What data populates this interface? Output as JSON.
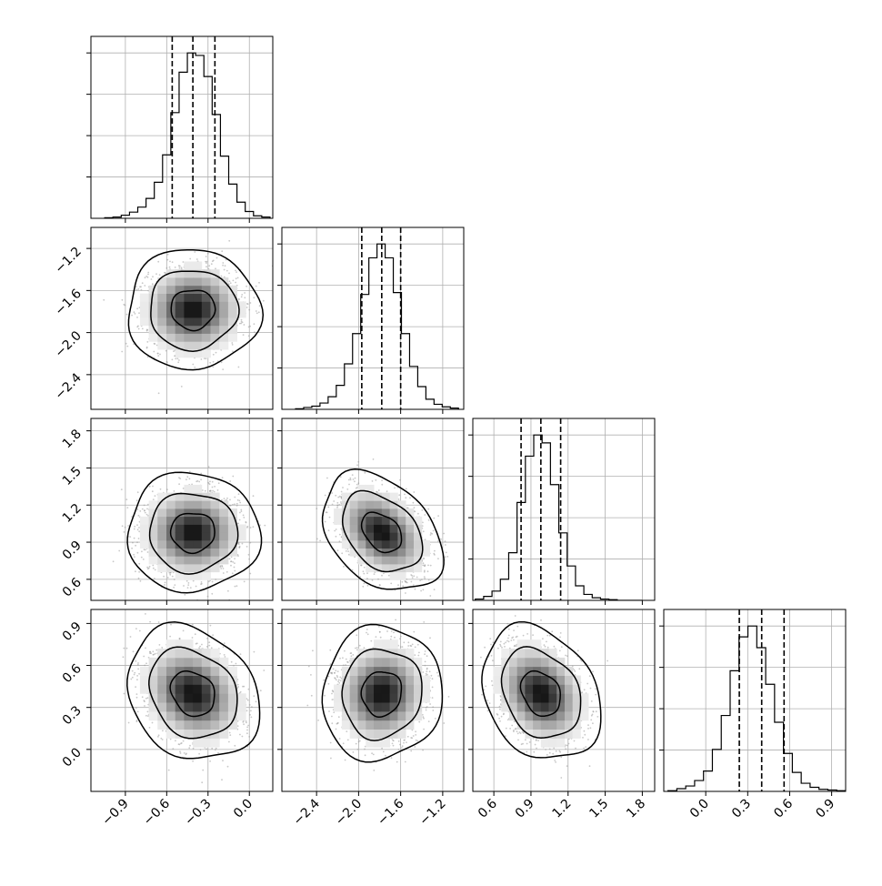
{
  "chart_data": {
    "type": "corner",
    "parameters": 4,
    "grid": true,
    "axis_ranges": [
      [
        -1.15,
        0.17
      ],
      [
        -2.73,
        -1.0
      ],
      [
        0.43,
        1.9
      ],
      [
        -0.3,
        1.0
      ]
    ],
    "x_tick_labels": [
      [
        "-0.9",
        "-0.6",
        "-0.3",
        "0.0"
      ],
      [
        "-2.4",
        "-2.0",
        "-1.6",
        "-1.2"
      ],
      [
        "0.6",
        "0.9",
        "1.2",
        "1.5",
        "1.8"
      ],
      [
        "0.0",
        "0.3",
        "0.6",
        "0.9"
      ]
    ],
    "y_tick_labels": {
      "1": [
        "-2.4",
        "-2.0",
        "-1.6",
        "-1.2"
      ],
      "2": [
        "0.6",
        "0.9",
        "1.2",
        "1.5",
        "1.8"
      ],
      "3": [
        "0.0",
        "0.3",
        "0.6",
        "0.9"
      ]
    },
    "x_tick_values": [
      [
        -0.9,
        -0.6,
        -0.3,
        0.0
      ],
      [
        -2.4,
        -2.0,
        -1.6,
        -1.2
      ],
      [
        0.6,
        0.9,
        1.2,
        1.5,
        1.8
      ],
      [
        0.0,
        0.3,
        0.6,
        0.9
      ]
    ],
    "quantiles": [
      [
        -0.56,
        -0.41,
        -0.25
      ],
      [
        -1.97,
        -1.78,
        -1.6
      ],
      [
        0.82,
        0.98,
        1.14
      ],
      [
        0.24,
        0.4,
        0.56
      ]
    ],
    "histograms": [
      {
        "range": [
          -1.05,
          0.15
        ],
        "counts": [
          1,
          2,
          5,
          10,
          18,
          32,
          58,
          102,
          170,
          235,
          266,
          262,
          228,
          167,
          100,
          55,
          26,
          11,
          4,
          2
        ]
      },
      {
        "range": [
          -2.6,
          -1.05
        ],
        "counts": [
          1,
          3,
          5,
          10,
          20,
          38,
          72,
          120,
          182,
          240,
          262,
          240,
          185,
          120,
          68,
          36,
          16,
          8,
          4,
          2
        ]
      },
      {
        "range": [
          0.45,
          1.8
        ],
        "counts": [
          2,
          6,
          14,
          32,
          72,
          148,
          218,
          250,
          238,
          175,
          102,
          52,
          22,
          9,
          4,
          2,
          1,
          0,
          0,
          0
        ]
      },
      {
        "range": [
          -0.27,
          1.0
        ],
        "counts": [
          1,
          4,
          8,
          16,
          30,
          62,
          112,
          178,
          228,
          244,
          212,
          158,
          102,
          56,
          28,
          12,
          6,
          3,
          2,
          1
        ]
      }
    ],
    "pairs": [
      {
        "x_param": 0,
        "y_param": 1,
        "center": [
          -0.41,
          -1.78
        ],
        "sigma": [
          0.16,
          0.19
        ],
        "rho": 0.0
      },
      {
        "x_param": 0,
        "y_param": 2,
        "center": [
          -0.41,
          0.98
        ],
        "sigma": [
          0.16,
          0.16
        ],
        "rho": 0.0
      },
      {
        "x_param": 1,
        "y_param": 2,
        "center": [
          -1.78,
          0.98
        ],
        "sigma": [
          0.19,
          0.16
        ],
        "rho": -0.35
      },
      {
        "x_param": 0,
        "y_param": 3,
        "center": [
          -0.41,
          0.4
        ],
        "sigma": [
          0.16,
          0.16
        ],
        "rho": -0.2
      },
      {
        "x_param": 1,
        "y_param": 3,
        "center": [
          -1.78,
          0.4
        ],
        "sigma": [
          0.19,
          0.16
        ],
        "rho": 0.05
      },
      {
        "x_param": 2,
        "y_param": 3,
        "center": [
          0.98,
          0.4
        ],
        "sigma": [
          0.16,
          0.16
        ],
        "rho": -0.25
      }
    ],
    "contour_levels": [
      0.3935,
      0.8647,
      0.9889
    ],
    "colors": {
      "line": "#000000",
      "grid": "#b0b0b0",
      "scatter": "#9a9a9a",
      "density_dark": "#000000",
      "density_light": "#ffffff"
    }
  }
}
